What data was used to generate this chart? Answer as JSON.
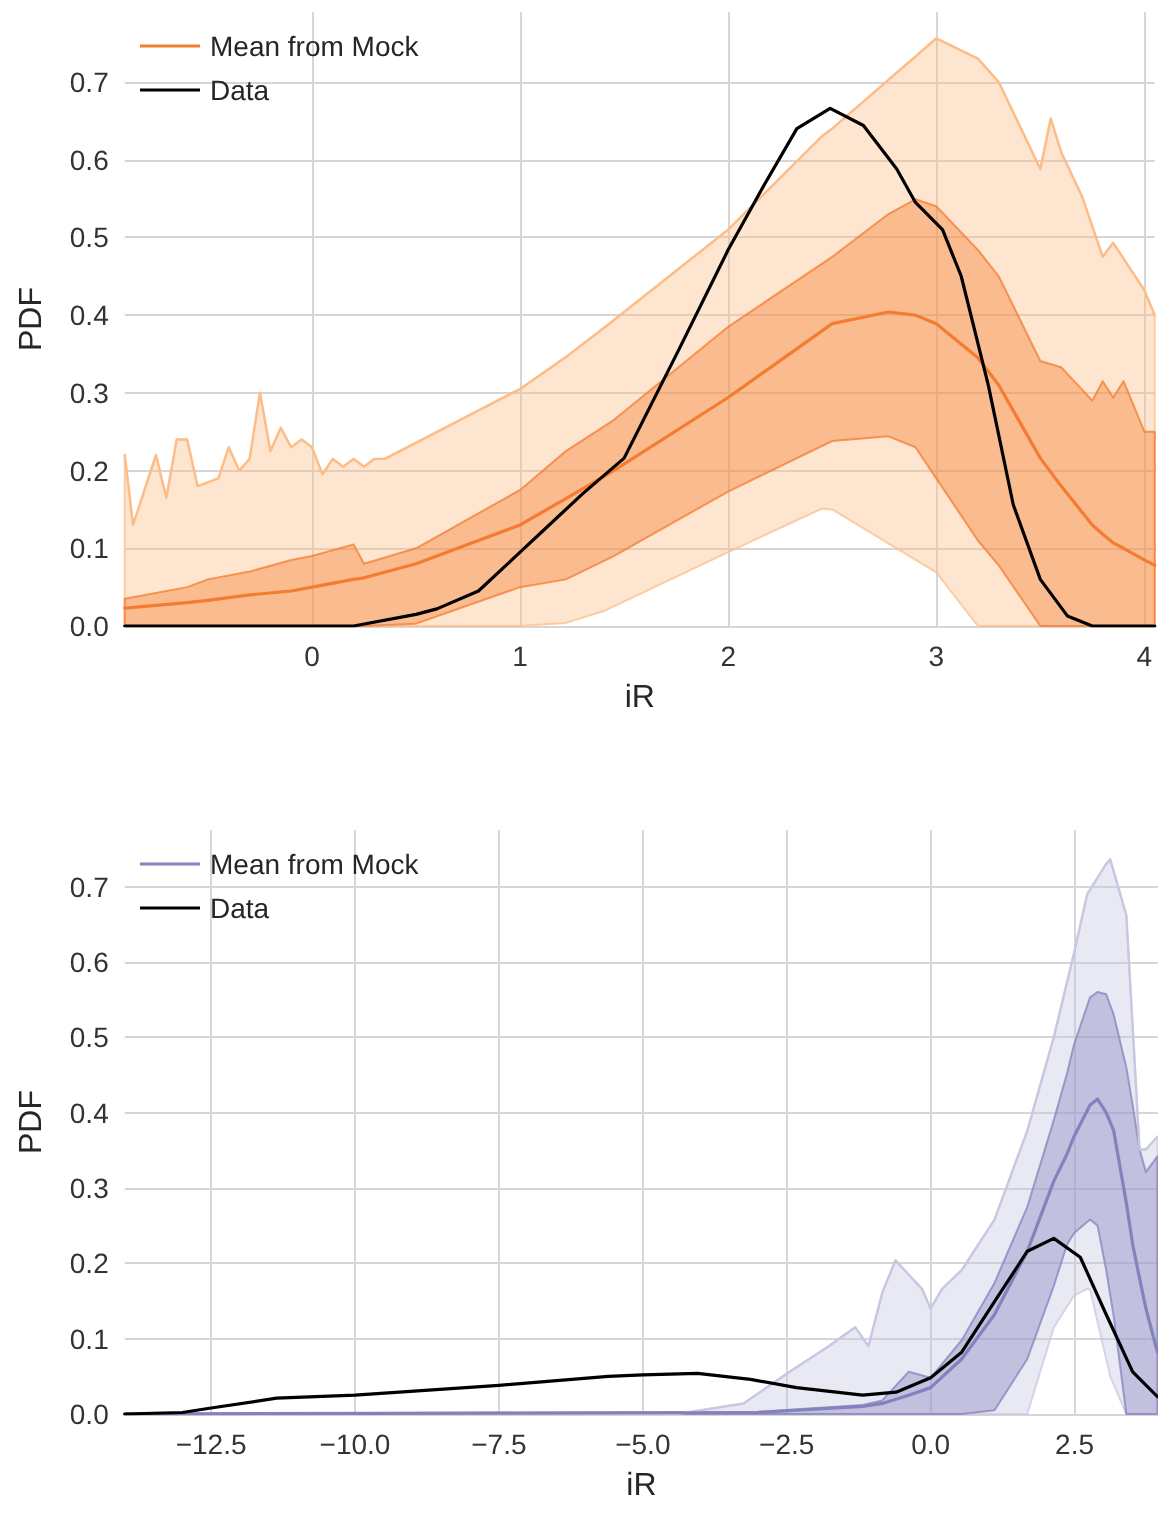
{
  "chart_data": [
    {
      "type": "line",
      "xlabel": "iR",
      "ylabel": "PDF",
      "xlim": [
        -0.9,
        4.05
      ],
      "ylim": [
        0,
        0.79
      ],
      "xticks": [
        0,
        1,
        2,
        3,
        4
      ],
      "yticks": [
        {
          "value": 0,
          "label": "0.0"
        },
        0.1,
        0.2,
        0.3,
        0.4,
        0.5,
        0.6,
        0.7
      ],
      "grid": true,
      "legend": "top left",
      "series": [
        {
          "color": "#fdbd88",
          "x": [
            -0.9,
            -0.86,
            -0.75,
            -0.7,
            -0.65,
            -0.6,
            -0.55,
            -0.45,
            -0.4,
            -0.35,
            -0.3,
            -0.25,
            -0.2,
            -0.15,
            -0.1,
            -0.05,
            0,
            0.05,
            0.1,
            0.15,
            0.2,
            0.25,
            0.3,
            0.35,
            1.0,
            1.22,
            1.41,
            2,
            2.45,
            2.5,
            3,
            3.2,
            3.3,
            3.5,
            3.55,
            3.6,
            3.7,
            3.8,
            3.85,
            4.0,
            4.05
          ],
          "values": [
            0.22,
            0.13,
            0.22,
            0.165,
            0.24,
            0.24,
            0.18,
            0.19,
            0.23,
            0.2,
            0.215,
            0.3,
            0.225,
            0.255,
            0.23,
            0.24,
            0.23,
            0.195,
            0.215,
            0.205,
            0.215,
            0.205,
            0.215,
            0.215,
            0.305,
            0.346,
            0.385,
            0.51,
            0.63,
            0.64,
            0.756,
            0.73,
            0.7,
            0.588,
            0.653,
            0.61,
            0.553,
            0.475,
            0.493,
            0.432,
            0.4
          ],
          "upper": [
            0.22,
            0.13,
            0.22,
            0.165,
            0.24,
            0.24,
            0.18,
            0.19,
            0.23,
            0.2,
            0.215,
            0.3,
            0.225,
            0.255,
            0.23,
            0.24,
            0.23,
            0.195,
            0.215,
            0.205,
            0.215,
            0.205,
            0.215,
            0.215,
            0.305,
            0.346,
            0.385,
            0.51,
            0.63,
            0.64,
            0.756,
            0.73,
            0.7,
            0.588,
            0.653,
            0.61,
            0.553,
            0.475,
            0.493,
            0.432,
            0.4
          ],
          "lower": [
            0,
            0,
            0,
            0,
            0,
            0,
            0,
            0,
            0,
            0,
            0,
            0,
            0,
            0,
            0,
            0,
            0,
            0,
            0,
            0,
            0,
            0,
            0,
            0,
            0,
            0.004,
            0.02,
            0.095,
            0.151,
            0.15,
            0.069,
            0,
            0,
            0,
            0,
            0,
            0,
            0,
            0,
            0,
            0
          ]
        },
        {
          "name": "Mean from Mock",
          "color": "#f47c30",
          "x": [
            -0.9,
            -0.6,
            -0.5,
            -0.3,
            -0.1,
            0,
            0.2,
            0.25,
            0.5,
            1.0,
            1.22,
            1.45,
            2.0,
            2.5,
            2.77,
            2.9,
            3.0,
            3.2,
            3.3,
            3.5,
            3.6,
            3.75,
            3.8,
            3.85,
            3.9,
            4.0,
            4.05
          ],
          "values": [
            0.023,
            0.03,
            0.033,
            0.04,
            0.045,
            0.05,
            0.06,
            0.062,
            0.08,
            0.13,
            0.164,
            0.2,
            0.294,
            0.389,
            0.404,
            0.4,
            0.389,
            0.345,
            0.31,
            0.216,
            0.18,
            0.13,
            0.118,
            0.107,
            0.1,
            0.085,
            0.078
          ],
          "lower": [
            0,
            0,
            0,
            0,
            0,
            0,
            0,
            0,
            0.003,
            0.05,
            0.06,
            0.09,
            0.173,
            0.238,
            0.244,
            0.23,
            0.19,
            0.11,
            0.078,
            0,
            0,
            0,
            0,
            0,
            0,
            0,
            0
          ],
          "upper": [
            0.035,
            0.05,
            0.06,
            0.07,
            0.085,
            0.09,
            0.105,
            0.08,
            0.1,
            0.175,
            0.225,
            0.265,
            0.385,
            0.475,
            0.53,
            0.549,
            0.54,
            0.484,
            0.45,
            0.341,
            0.333,
            0.29,
            0.315,
            0.294,
            0.315,
            0.25,
            0.25
          ]
        },
        {
          "name": "Data",
          "color": "#000000",
          "x": [
            -0.9,
            0,
            0.2,
            0.5,
            0.6,
            0.8,
            1.0,
            1.1,
            1.3,
            1.5,
            1.76,
            2.0,
            2.17,
            2.33,
            2.49,
            2.65,
            2.81,
            2.9,
            3.03,
            3.12,
            3.25,
            3.37,
            3.5,
            3.63,
            3.75,
            4.05
          ],
          "values": [
            0,
            0,
            0,
            0.015,
            0.022,
            0.045,
            0.095,
            0.12,
            0.17,
            0.216,
            0.354,
            0.484,
            0.566,
            0.64,
            0.666,
            0.644,
            0.588,
            0.545,
            0.51,
            0.45,
            0.31,
            0.156,
            0.06,
            0.013,
            0,
            0
          ]
        }
      ]
    },
    {
      "type": "line",
      "xlabel": "iR",
      "ylabel": "PDF",
      "xlim": [
        -14,
        3.95
      ],
      "ylim": [
        0,
        0.775
      ],
      "xticks": [
        {
          "value": -12.5,
          "label": "−12.5"
        },
        {
          "value": -10,
          "label": "−10.0"
        },
        {
          "value": -7.5,
          "label": "−7.5"
        },
        {
          "value": -5,
          "label": "−5.0"
        },
        {
          "value": -2.5,
          "label": "−2.5"
        },
        {
          "value": 0,
          "label": "0.0"
        },
        2.5
      ],
      "yticks": [
        {
          "value": 0,
          "label": "0.0"
        },
        0.1,
        0.2,
        0.3,
        0.4,
        0.5,
        0.6,
        0.7
      ],
      "grid": true,
      "legend": "top left",
      "series": [
        {
          "color": "#c9c8e3",
          "x": [
            -14,
            -4.4,
            -3.25,
            -2.45,
            -1.77,
            -1.31,
            -1.08,
            -0.84,
            -0.61,
            -0.15,
            0,
            0.2,
            0.54,
            1.11,
            1.68,
            2.14,
            2.49,
            2.72,
            2.77,
            3.05,
            3.12,
            3.4,
            3.63,
            3.74,
            3.94
          ],
          "values": [
            0,
            0,
            0.014,
            0.056,
            0.09,
            0.115,
            0.09,
            0.161,
            0.204,
            0.166,
            0.14,
            0.166,
            0.191,
            0.258,
            0.376,
            0.5,
            0.611,
            0.69,
            0.696,
            0.73,
            0.736,
            0.662,
            0.351,
            0.351,
            0.368
          ],
          "upper": [
            0,
            0,
            0.014,
            0.056,
            0.09,
            0.115,
            0.09,
            0.161,
            0.204,
            0.166,
            0.14,
            0.166,
            0.191,
            0.258,
            0.376,
            0.5,
            0.611,
            0.69,
            0.696,
            0.73,
            0.736,
            0.662,
            0.351,
            0.351,
            0.368
          ],
          "lower": [
            0,
            0,
            0,
            0,
            0,
            0,
            0,
            0,
            0,
            0,
            0,
            0,
            0,
            0,
            0,
            0.115,
            0.157,
            0.166,
            0.165,
            0.073,
            0.05,
            0,
            0,
            0,
            0
          ]
        },
        {
          "name": "Mean from Mock",
          "color": "#8581bd",
          "x": [
            -14,
            -3,
            -1.18,
            -0.84,
            -0.38,
            0,
            0.54,
            1.11,
            1.68,
            2.14,
            2.37,
            2.49,
            2.77,
            2.9,
            3.05,
            3.18,
            3.4,
            3.51,
            3.63,
            3.74,
            3.94
          ],
          "values": [
            0,
            0.002,
            0.01,
            0.014,
            0.025,
            0.035,
            0.073,
            0.132,
            0.216,
            0.309,
            0.345,
            0.368,
            0.41,
            0.418,
            0.4,
            0.376,
            0.28,
            0.225,
            0.18,
            0.14,
            0.082
          ],
          "lower": [
            0,
            0,
            0,
            0,
            0,
            0,
            0,
            0.005,
            0.073,
            0.17,
            0.225,
            0.24,
            0.258,
            0.25,
            0.191,
            0.13,
            0,
            0,
            0,
            0,
            0
          ],
          "upper": [
            0,
            0.003,
            0.012,
            0.018,
            0.056,
            0.048,
            0.098,
            0.174,
            0.275,
            0.39,
            0.452,
            0.49,
            0.553,
            0.56,
            0.557,
            0.53,
            0.46,
            0.41,
            0.351,
            0.321,
            0.342
          ]
        },
        {
          "name": "Data",
          "color": "#000000",
          "x": [
            -14,
            -13,
            -12.5,
            -11.36,
            -10,
            -7.5,
            -5.6,
            -5,
            -4.05,
            -3.13,
            -2.33,
            -1.18,
            -0.6,
            0,
            0.54,
            1.11,
            1.68,
            2.14,
            2.6,
            3.05,
            3.51,
            3.94
          ],
          "values": [
            0,
            0.002,
            0.008,
            0.021,
            0.025,
            0.038,
            0.05,
            0.052,
            0.054,
            0.046,
            0.035,
            0.025,
            0.029,
            0.048,
            0.082,
            0.149,
            0.216,
            0.233,
            0.208,
            0.132,
            0.056,
            0.023
          ]
        }
      ]
    }
  ]
}
